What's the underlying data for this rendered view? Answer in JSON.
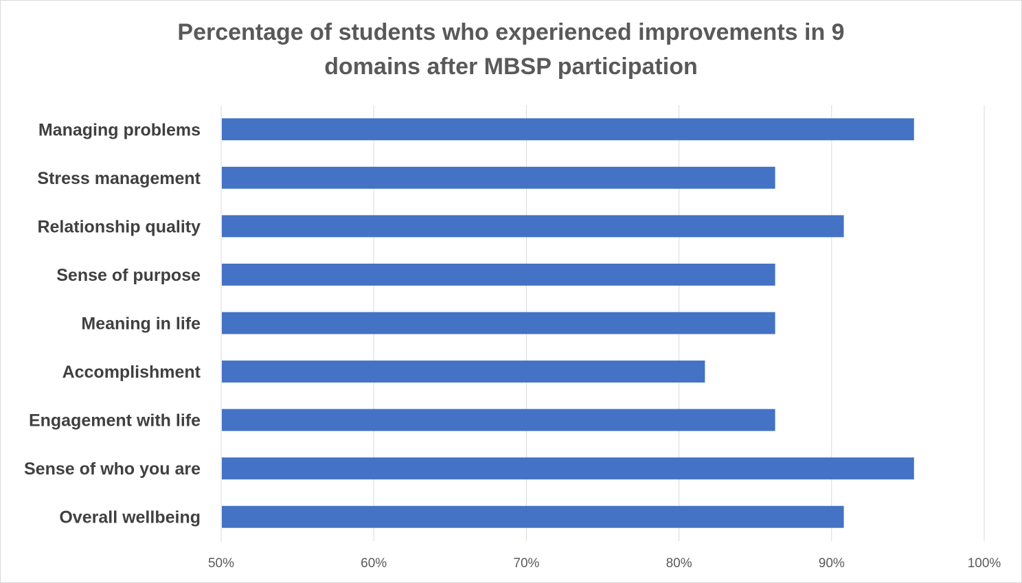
{
  "title_lines": [
    "Percentage of students who experienced improvements in 9",
    "domains after MBSP participation"
  ],
  "colors": {
    "bar": "#4472c4",
    "grid": "#d9d9d9",
    "label": "#404040"
  },
  "chart_data": {
    "type": "bar",
    "orientation": "horizontal",
    "title": "Percentage of students who experienced improvements in 9 domains after MBSP participation",
    "categories": [
      "Managing problems",
      "Stress management",
      "Relationship quality",
      "Sense of purpose",
      "Meaning in life",
      "Accomplishment",
      "Engagement with life",
      "Sense of who you are",
      "Overall wellbeing"
    ],
    "values": [
      95.4,
      86.3,
      90.8,
      86.3,
      86.3,
      81.7,
      86.3,
      95.4,
      90.8
    ],
    "xlim": [
      50,
      100
    ],
    "xticks": [
      50,
      60,
      70,
      80,
      90,
      100
    ],
    "xtick_labels": [
      "50%",
      "60%",
      "70%",
      "80%",
      "90%",
      "100%"
    ],
    "grid": true,
    "legend": "none"
  }
}
